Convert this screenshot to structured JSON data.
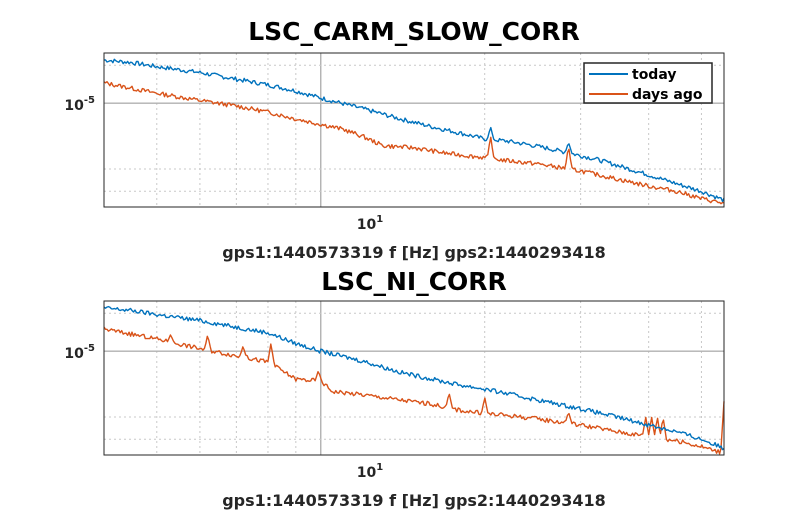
{
  "colors": {
    "today": "#0072bd",
    "days_ago": "#d95319",
    "grid": "#c8c8c8",
    "axis": "#262626"
  },
  "chart_data": [
    {
      "type": "line",
      "title": "LSC_CARM_SLOW_CORR",
      "xlabel": "gps1:1440573319  f [Hz]  gps2:1440293418",
      "ylabel": "",
      "xscale": "log",
      "yscale": "log",
      "xlim": [
        4,
        55
      ],
      "ylim": [
        1.5e-06,
        2.5e-05
      ],
      "xtick_label": {
        "base": "10",
        "exponent": "1",
        "value": 10
      },
      "ytick_label": {
        "base": "10",
        "exponent": "-5",
        "value": 1e-05
      },
      "grid": true,
      "legend": {
        "placement": "top-right",
        "entries": [
          "today",
          "days ago"
        ]
      },
      "series": [
        {
          "name": "today",
          "points": [
            [
              4,
              2.2e-05
            ],
            [
              4.5,
              2.1e-05
            ],
            [
              5,
              1.95e-05
            ],
            [
              6,
              1.75e-05
            ],
            [
              7,
              1.55e-05
            ],
            [
              8,
              1.4e-05
            ],
            [
              9,
              1.25e-05
            ],
            [
              10,
              1.1e-05
            ],
            [
              12,
              9e-06
            ],
            [
              14,
              7.5e-06
            ],
            [
              16,
              6.5e-06
            ],
            [
              18,
              5.8e-06
            ],
            [
              20,
              5.2e-06
            ],
            [
              22,
              5e-06
            ],
            [
              24,
              4.7e-06
            ],
            [
              26,
              4.4e-06
            ],
            [
              28,
              4.1e-06
            ],
            [
              32,
              3.6e-06
            ],
            [
              36,
              3.1e-06
            ],
            [
              40,
              2.7e-06
            ],
            [
              45,
              2.3e-06
            ],
            [
              50,
              2e-06
            ],
            [
              55,
              1.7e-06
            ]
          ],
          "peaks": [
            [
              20.5,
              6.5e-06
            ],
            [
              28.5,
              4.9e-06
            ]
          ]
        },
        {
          "name": "days ago",
          "points": [
            [
              4,
              1.45e-05
            ],
            [
              5,
              1.2e-05
            ],
            [
              6,
              1.05e-05
            ],
            [
              7,
              9.5e-06
            ],
            [
              8,
              8.5e-06
            ],
            [
              9,
              7.5e-06
            ],
            [
              10,
              6.8e-06
            ],
            [
              11,
              6.2e-06
            ],
            [
              12,
              5.4e-06
            ],
            [
              13,
              4.6e-06
            ],
            [
              14,
              4.5e-06
            ],
            [
              15,
              4.4e-06
            ],
            [
              17,
              4e-06
            ],
            [
              20,
              3.7e-06
            ],
            [
              22,
              3.5e-06
            ],
            [
              25,
              3.3e-06
            ],
            [
              30,
              2.9e-06
            ],
            [
              35,
              2.5e-06
            ],
            [
              40,
              2.2e-06
            ],
            [
              45,
              2e-06
            ],
            [
              50,
              1.75e-06
            ],
            [
              55,
              1.6e-06
            ]
          ],
          "peaks": [
            [
              20.5,
              5.5e-06
            ],
            [
              28.5,
              4.6e-06
            ]
          ]
        }
      ]
    },
    {
      "type": "line",
      "title": "LSC_NI_CORR",
      "xlabel": "gps1:1440573319  f [Hz]  gps2:1440293418",
      "ylabel": "",
      "xscale": "log",
      "yscale": "log",
      "xlim": [
        4,
        55
      ],
      "ylim": [
        1.5e-06,
        2.5e-05
      ],
      "xtick_label": {
        "base": "10",
        "exponent": "1",
        "value": 10
      },
      "ytick_label": {
        "base": "10",
        "exponent": "-5",
        "value": 1e-05
      },
      "grid": true,
      "legend": null,
      "series": [
        {
          "name": "today",
          "points": [
            [
              4,
              2.2e-05
            ],
            [
              4.5,
              2.1e-05
            ],
            [
              5,
              1.95e-05
            ],
            [
              6,
              1.75e-05
            ],
            [
              7,
              1.55e-05
            ],
            [
              8,
              1.4e-05
            ],
            [
              9,
              1.15e-05
            ],
            [
              10,
              1e-05
            ],
            [
              12,
              8.3e-06
            ],
            [
              14,
              6.8e-06
            ],
            [
              16,
              6e-06
            ],
            [
              18,
              5.4e-06
            ],
            [
              20,
              5e-06
            ],
            [
              22,
              4.6e-06
            ],
            [
              25,
              4.1e-06
            ],
            [
              30,
              3.5e-06
            ],
            [
              35,
              3e-06
            ],
            [
              40,
              2.6e-06
            ],
            [
              45,
              2.3e-06
            ],
            [
              50,
              2e-06
            ],
            [
              55,
              1.7e-06
            ]
          ],
          "peaks": [
            [
              17.2,
              5e-06
            ]
          ]
        },
        {
          "name": "days ago",
          "points": [
            [
              4,
              1.5e-05
            ],
            [
              5,
              1.25e-05
            ],
            [
              6,
              1.05e-05
            ],
            [
              7,
              9.2e-06
            ],
            [
              8,
              8.2e-06
            ],
            [
              9,
              6e-06
            ],
            [
              10,
              5.8e-06
            ],
            [
              10.5,
              4.8e-06
            ],
            [
              12,
              4.5e-06
            ],
            [
              14,
              4.1e-06
            ],
            [
              16,
              3.8e-06
            ],
            [
              18,
              3.4e-06
            ],
            [
              20,
              3.2e-06
            ],
            [
              22,
              3.1e-06
            ],
            [
              25,
              2.9e-06
            ],
            [
              30,
              2.6e-06
            ],
            [
              35,
              2.3e-06
            ],
            [
              40,
              2.1e-06
            ],
            [
              45,
              1.95e-06
            ],
            [
              50,
              1.75e-06
            ],
            [
              55,
              1.55e-06
            ]
          ],
          "peaks": [
            [
              5.3,
              1.35e-05
            ],
            [
              6.2,
              1.35e-05
            ],
            [
              7.2,
              1.1e-05
            ],
            [
              8.1,
              1.15e-05
            ],
            [
              9.9,
              7e-06
            ],
            [
              17.2,
              4.7e-06
            ],
            [
              20.0,
              4.3e-06
            ],
            [
              28.5,
              3.3e-06
            ],
            [
              39.5,
              3e-06
            ],
            [
              40.5,
              3e-06
            ],
            [
              41.5,
              3e-06
            ],
            [
              42.5,
              3e-06
            ],
            [
              55,
              4e-06
            ]
          ]
        }
      ]
    }
  ]
}
